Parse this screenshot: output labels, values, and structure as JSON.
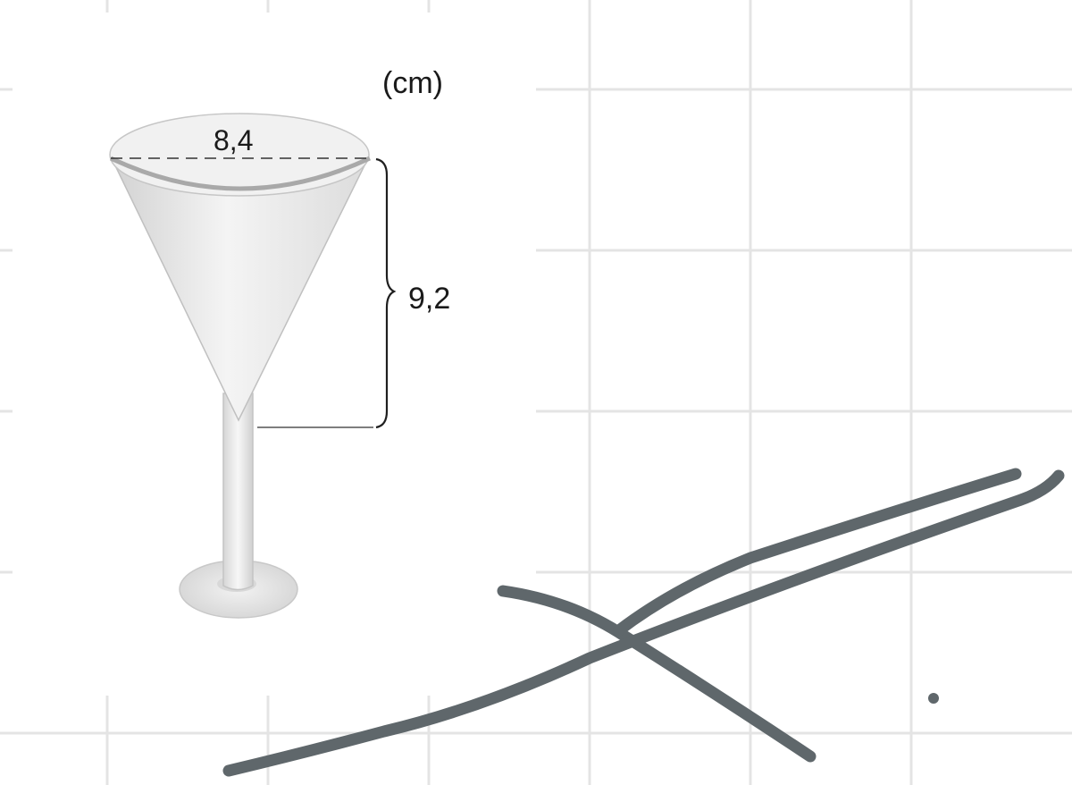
{
  "figure": {
    "unit": "(cm)",
    "diameter": "8,4",
    "height": "9,2"
  },
  "colors": {
    "grid": "#e4e4e4",
    "scribble": "#5f676b",
    "glass_outline": "#bdbdbd",
    "text": "#1a1a1a"
  },
  "icons": {
    "glass": "cocktail-glass-icon"
  }
}
